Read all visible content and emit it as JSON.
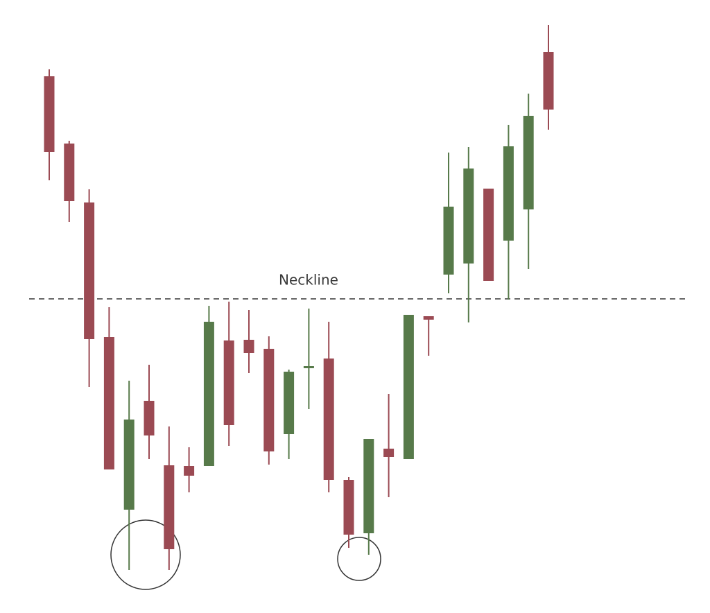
{
  "chart_data": {
    "type": "candlestick",
    "categories": [
      null,
      null,
      null,
      null,
      null,
      null,
      null,
      null,
      null,
      null,
      null,
      null,
      null,
      null,
      null,
      null,
      null,
      null,
      null,
      null,
      null,
      null,
      null,
      null,
      null,
      null
    ],
    "open": [
      774,
      677,
      592,
      398,
      149,
      306,
      213,
      212,
      212,
      393,
      394,
      381,
      258,
      353,
      367,
      192,
      115,
      237,
      222,
      428,
      488,
      504,
      612,
      537,
      582,
      809
    ],
    "high": [
      784,
      681,
      611,
      441,
      335,
      358,
      269,
      239,
      443,
      449,
      437,
      399,
      351,
      439,
      420,
      196,
      251,
      316,
      430,
      428,
      664,
      672,
      612,
      704,
      749,
      848
    ],
    "low": [
      624,
      564,
      326,
      207,
      62,
      222,
      62,
      174,
      212,
      241,
      346,
      214,
      222,
      294,
      174,
      94,
      84,
      167,
      222,
      371,
      461,
      419,
      479,
      452,
      496,
      697
    ],
    "close": [
      665,
      594,
      395,
      207,
      279,
      256,
      92,
      198,
      420,
      271,
      375,
      233,
      348,
      356,
      192,
      113,
      251,
      225,
      430,
      423,
      586,
      641,
      479,
      673,
      717,
      726
    ],
    "up_color": "#577a4a",
    "down_color": "#9b4a53",
    "ylim": [
      0,
      884
    ],
    "neckline": 453,
    "neckline_label": "Neckline"
  }
}
